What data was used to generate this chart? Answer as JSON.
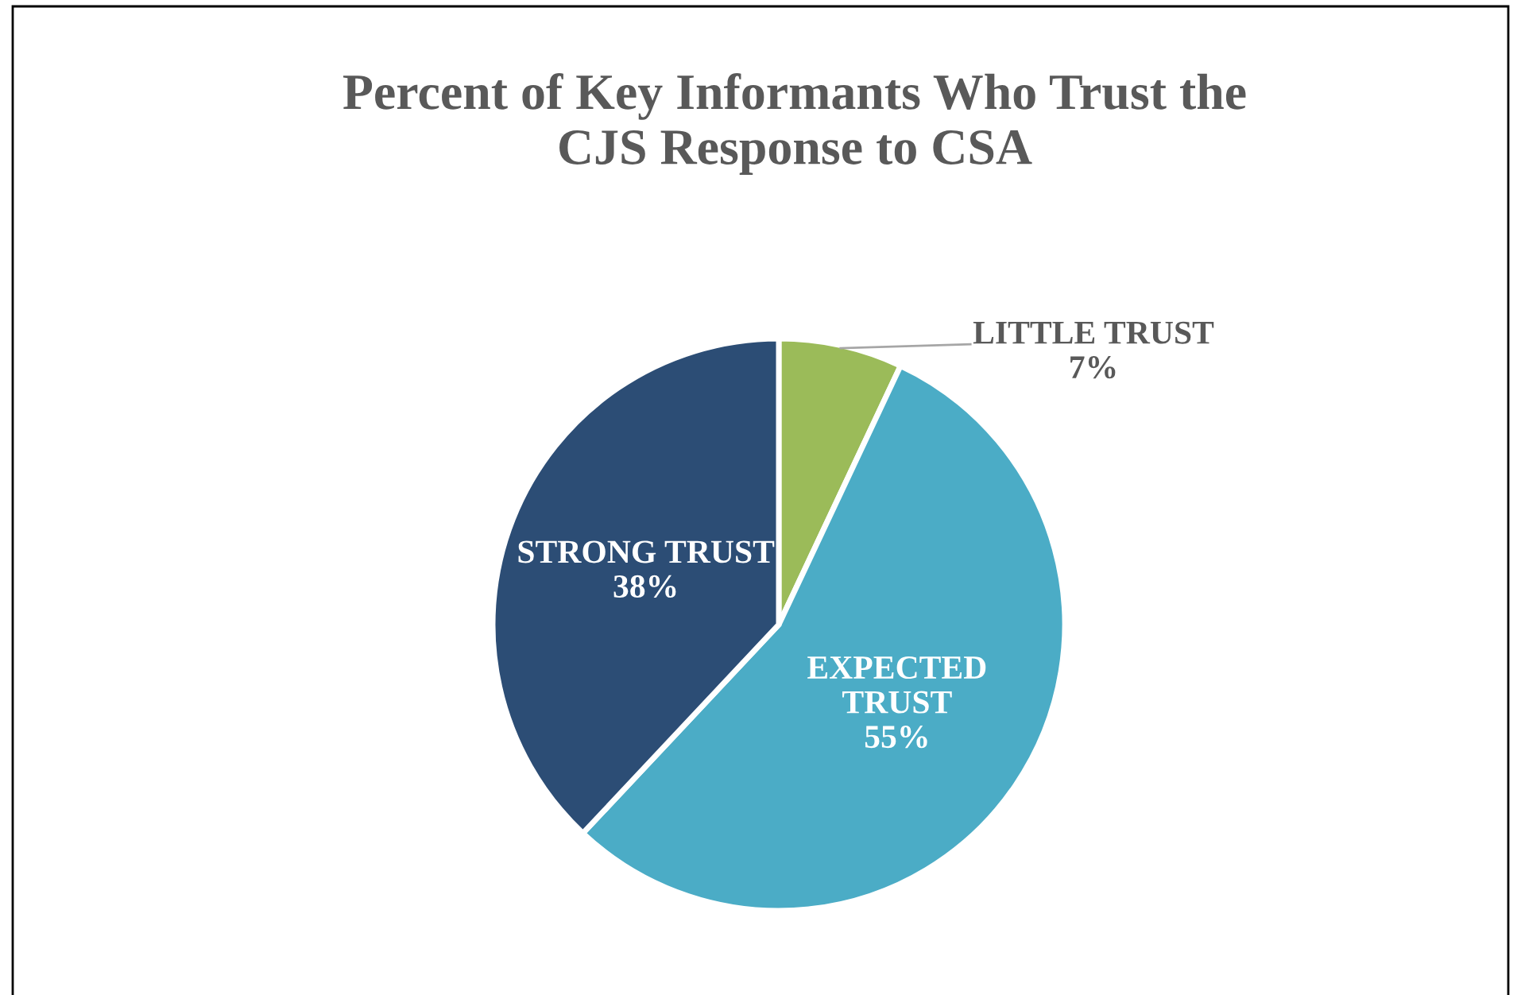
{
  "chart_data": {
    "type": "pie",
    "title": "Percent of Key Informants Who Trust the\nCJS Response to CSA",
    "categories": [
      "LITTLE TRUST",
      "EXPECTED TRUST",
      "STRONG TRUST"
    ],
    "values": [
      7,
      55,
      38
    ],
    "value_labels": [
      "7%",
      "55%",
      "38%"
    ],
    "colors": [
      "#9bbb59",
      "#4bacc6",
      "#2c4d75"
    ]
  }
}
